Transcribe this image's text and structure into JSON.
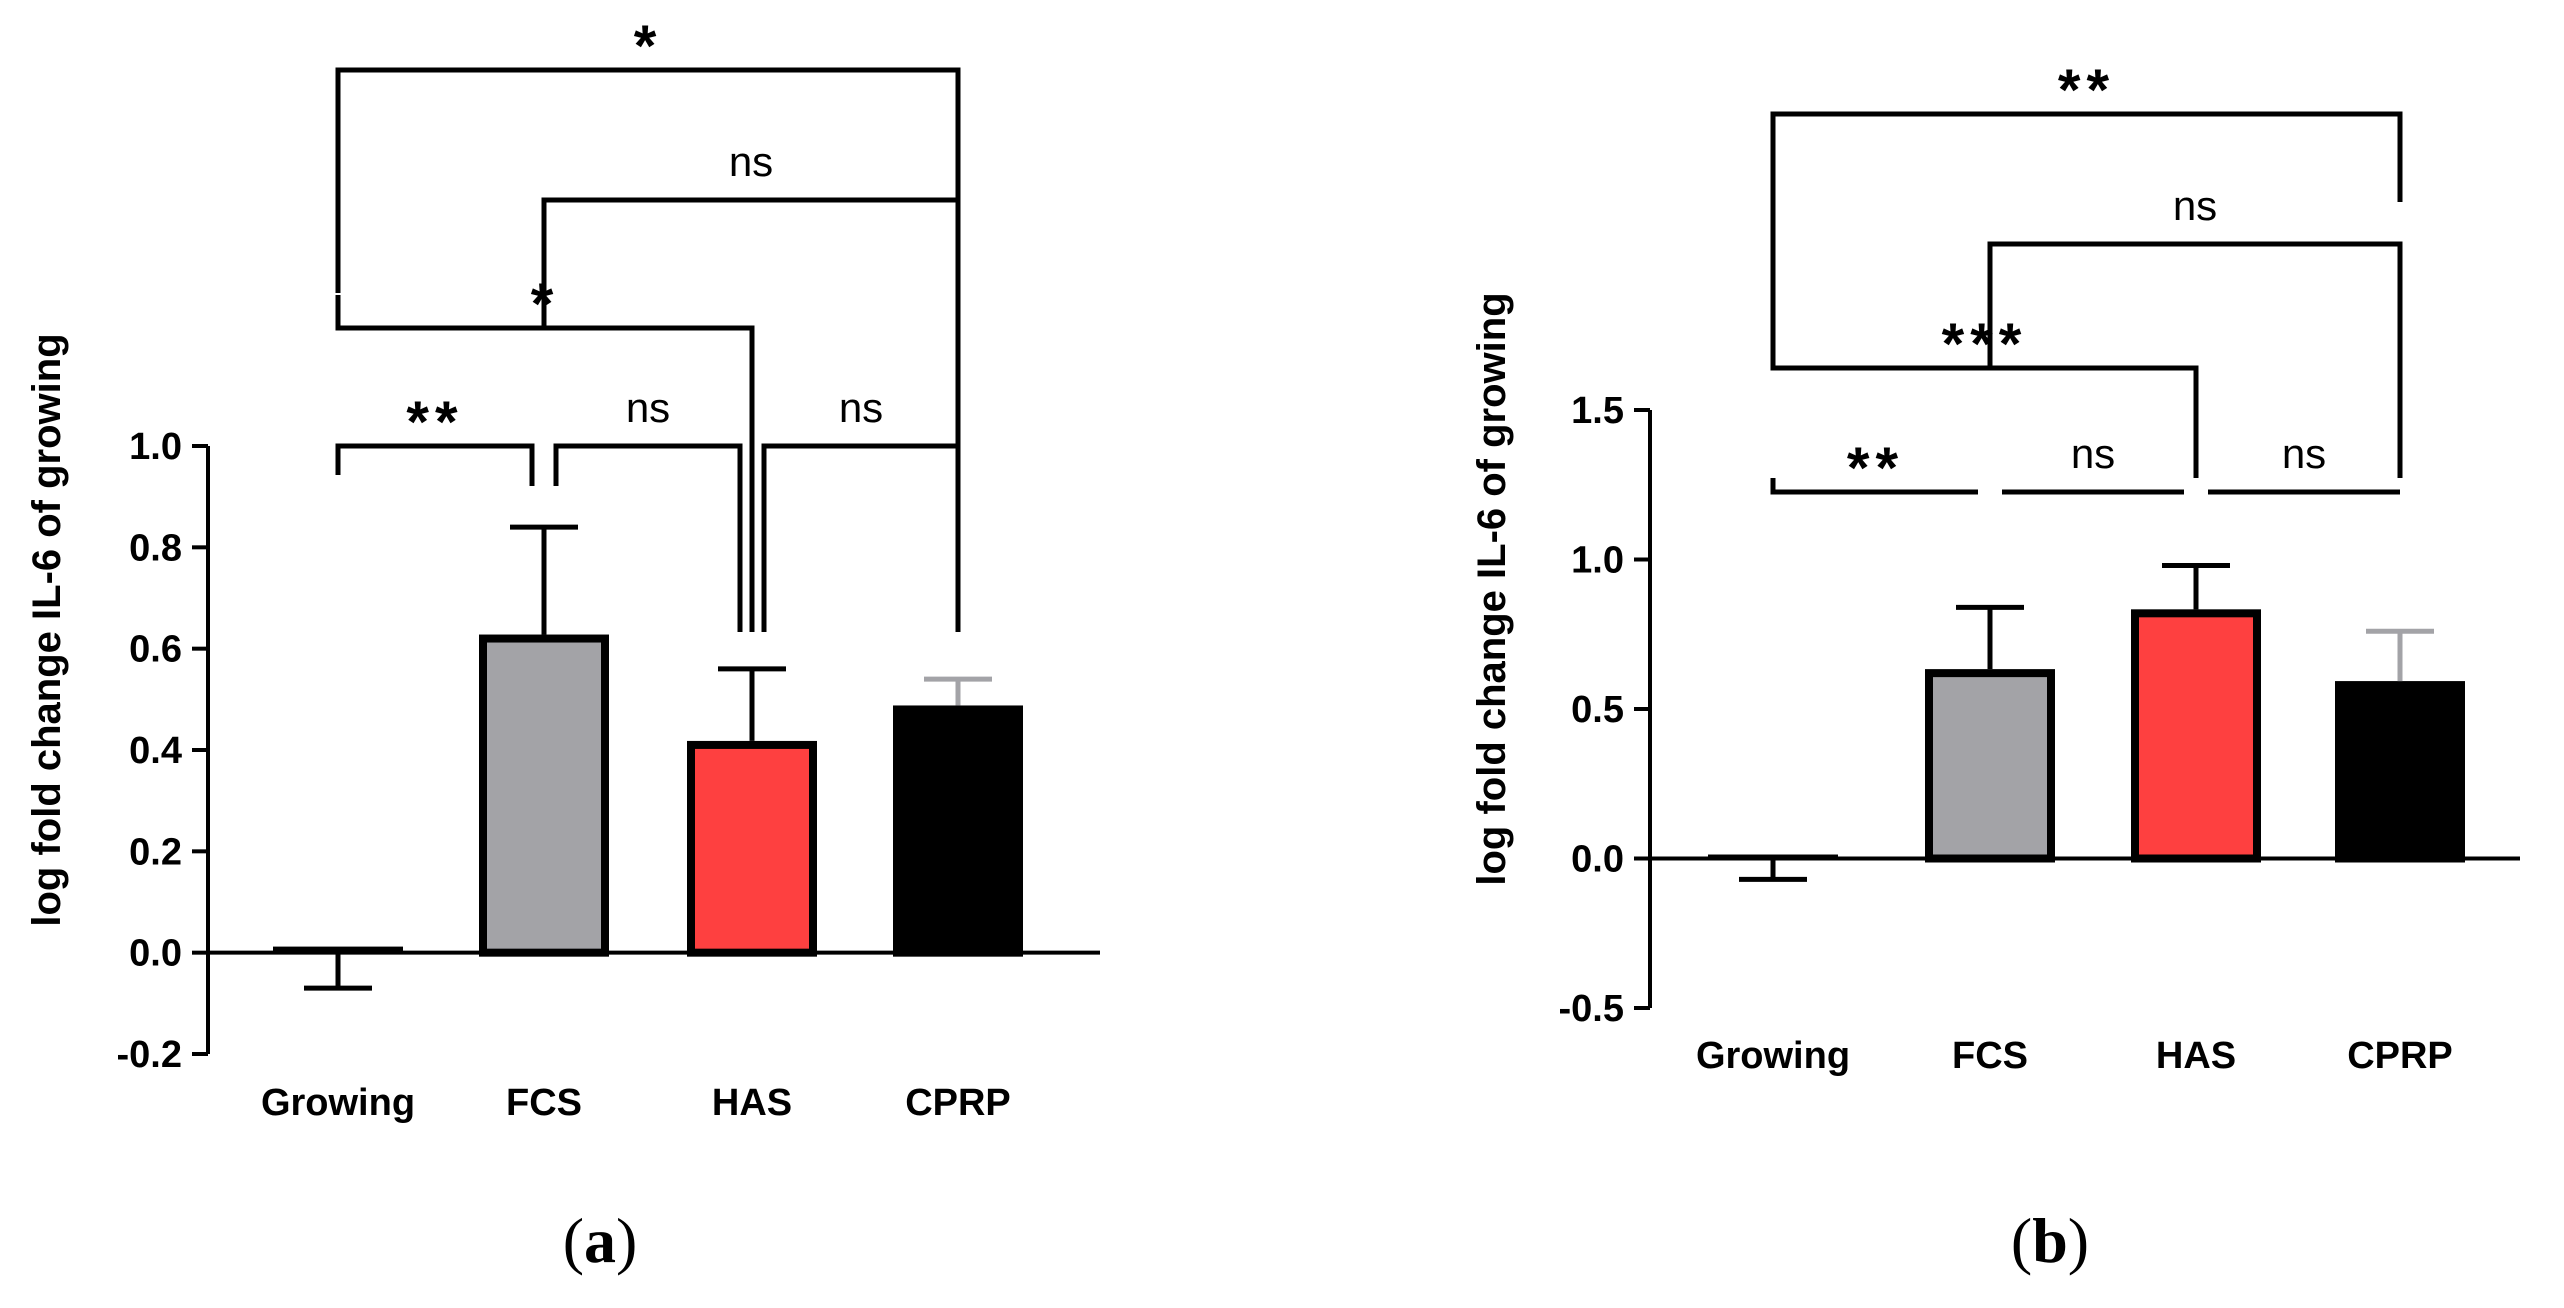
{
  "chart_data": [
    {
      "type": "bar",
      "panel": "a",
      "panel_label": "(a)",
      "title": "",
      "xlabel": "",
      "ylabel": "log fold change IL-6 of growing",
      "ylim": [
        -0.2,
        1.0
      ],
      "yticks": [
        -0.2,
        0.0,
        0.2,
        0.4,
        0.6,
        0.8,
        1.0
      ],
      "ytick_labels": [
        "-0.2",
        "0.0",
        "0.2",
        "0.4",
        "0.6",
        "0.8",
        "1.0"
      ],
      "categories": [
        "Growing",
        "FCS",
        "HAS",
        "CPRP"
      ],
      "values": [
        0.01,
        0.62,
        0.41,
        0.48
      ],
      "errors": [
        0.08,
        0.22,
        0.15,
        0.06
      ],
      "error_direction": [
        "down",
        "up",
        "up",
        "up"
      ],
      "bar_colors": [
        "#ffffff",
        "#a3a3a7",
        "#fe4040",
        "#000000"
      ],
      "error_colors": [
        "#000000",
        "#000000",
        "#000000",
        "#a3a3a7"
      ],
      "comparisons": [
        {
          "from": "Growing",
          "to": "FCS",
          "label": "**"
        },
        {
          "from": "FCS",
          "to": "HAS",
          "label": "ns"
        },
        {
          "from": "HAS",
          "to": "CPRP",
          "label": "ns"
        },
        {
          "from": "Growing",
          "to": "HAS",
          "label": "*"
        },
        {
          "from": "FCS",
          "to": "CPRP",
          "label": "ns"
        },
        {
          "from": "Growing",
          "to": "CPRP",
          "label": "*"
        }
      ]
    },
    {
      "type": "bar",
      "panel": "b",
      "panel_label": "(b)",
      "title": "",
      "xlabel": "",
      "ylabel": "log fold change IL-6 of growing",
      "ylim": [
        -0.5,
        1.5
      ],
      "yticks": [
        -0.5,
        0.0,
        0.5,
        1.0,
        1.5
      ],
      "ytick_labels": [
        "-0.5",
        "0.0",
        "0.5",
        "1.0",
        "1.5"
      ],
      "categories": [
        "Growing",
        "FCS",
        "HAS",
        "CPRP"
      ],
      "values": [
        0.01,
        0.62,
        0.82,
        0.58
      ],
      "errors": [
        0.08,
        0.22,
        0.16,
        0.18
      ],
      "error_direction": [
        "down",
        "up",
        "up",
        "up"
      ],
      "bar_colors": [
        "#ffffff",
        "#a3a3a7",
        "#fe4040",
        "#000000"
      ],
      "error_colors": [
        "#000000",
        "#000000",
        "#000000",
        "#a3a3a7"
      ],
      "comparisons": [
        {
          "from": "Growing",
          "to": "FCS",
          "label": "**"
        },
        {
          "from": "FCS",
          "to": "HAS",
          "label": "ns"
        },
        {
          "from": "HAS",
          "to": "CPRP",
          "label": "ns"
        },
        {
          "from": "Growing",
          "to": "HAS",
          "label": "***"
        },
        {
          "from": "FCS",
          "to": "CPRP",
          "label": "ns"
        },
        {
          "from": "Growing",
          "to": "CPRP",
          "label": "**"
        }
      ]
    }
  ]
}
